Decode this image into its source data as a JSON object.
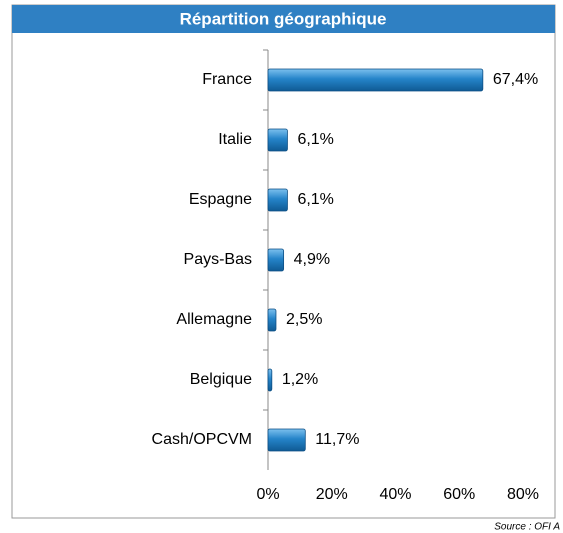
{
  "chart_data": {
    "type": "bar",
    "orientation": "horizontal",
    "title": "Répartition géographique",
    "categories": [
      "France",
      "Italie",
      "Espagne",
      "Pays-Bas",
      "Allemagne",
      "Belgique",
      "Cash/OPCVM"
    ],
    "values": [
      67.4,
      6.1,
      6.1,
      4.9,
      2.5,
      1.2,
      11.7
    ],
    "value_labels": [
      "67,4%",
      "6,1%",
      "6,1%",
      "4,9%",
      "2,5%",
      "1,2%",
      "11,7%"
    ],
    "color": "#2584c9",
    "xlim": [
      0,
      80
    ],
    "xticks": [
      {
        "value": 0,
        "label": "0%"
      },
      {
        "value": 20,
        "label": "20%"
      },
      {
        "value": 40,
        "label": "40%"
      },
      {
        "value": 60,
        "label": "60%"
      },
      {
        "value": 80,
        "label": "80%"
      }
    ],
    "source": "Source : OFI A"
  }
}
